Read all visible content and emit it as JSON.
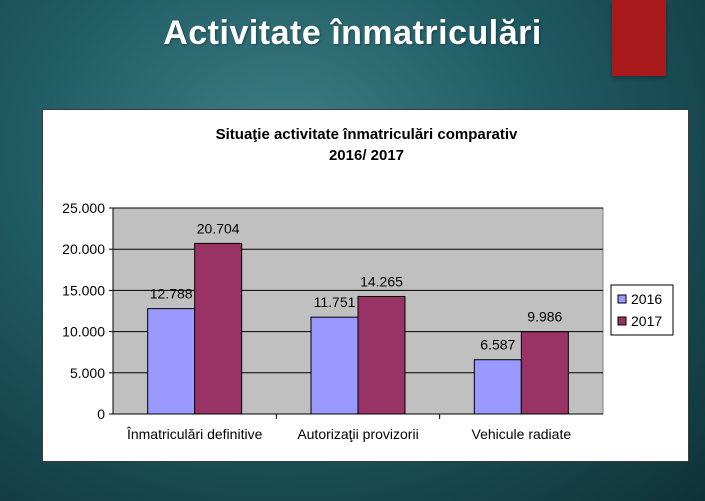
{
  "slide": {
    "title": "Activitate înmatriculări",
    "accent_color": "#a8191b"
  },
  "chart_data": {
    "type": "bar",
    "title_lines": [
      "Situaţie activitate înmatriculări comparativ",
      "2016/ 2017"
    ],
    "categories": [
      "Înmatriculări definitive",
      "Autorizaţii provizorii",
      "Vehicule radiate"
    ],
    "series": [
      {
        "name": "2016",
        "color": "#9999ff",
        "values": [
          12788,
          11751,
          6587
        ],
        "labels": [
          "12.788",
          "11.751",
          "6.587"
        ]
      },
      {
        "name": "2017",
        "color": "#993366",
        "values": [
          20704,
          14265,
          9986
        ],
        "labels": [
          "20.704",
          "14.265",
          "9.986"
        ]
      }
    ],
    "ylim": [
      0,
      25000
    ],
    "yticks": [
      0,
      5000,
      10000,
      15000,
      20000,
      25000
    ],
    "ytick_labels": [
      "0",
      "5.000",
      "10.000",
      "15.000",
      "20.000",
      "25.000"
    ],
    "grid": true,
    "plot_background": "#c0c0c0",
    "legend_position": "right"
  }
}
